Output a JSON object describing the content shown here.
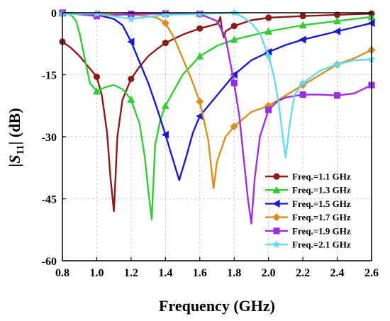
{
  "chart_data": {
    "type": "line",
    "title": "",
    "xlabel": "Frequency (GHz)",
    "ylabel_parts": {
      "left_bar": "|",
      "symbol": "S",
      "subscript": "11",
      "right_bar": "|",
      "unit": " (dB)"
    },
    "xlim": [
      0.8,
      2.6
    ],
    "ylim": [
      -60,
      0
    ],
    "x_ticks": [
      "0.8",
      "1.0",
      "1.2",
      "1.4",
      "1.6",
      "1.8",
      "2.0",
      "2.2",
      "2.4",
      "2.6"
    ],
    "x_tick_values": [
      0.8,
      1.0,
      1.2,
      1.4,
      1.6,
      1.8,
      2.0,
      2.2,
      2.4,
      2.6
    ],
    "y_ticks": [
      "0",
      "-15",
      "-30",
      "-45",
      "-60"
    ],
    "y_tick_values": [
      0,
      -15,
      -30,
      -45,
      -60
    ],
    "grid": true,
    "legend_position": "bottom-right",
    "series": [
      {
        "name": "Freq.=1.1 GHz",
        "color": "#8b1a1a",
        "marker": "circle",
        "x": [
          0.8,
          0.85,
          0.9,
          0.95,
          1.0,
          1.03,
          1.06,
          1.08,
          1.1,
          1.12,
          1.15,
          1.2,
          1.25,
          1.3,
          1.35,
          1.4,
          1.5,
          1.6,
          1.7,
          1.71,
          1.72,
          1.73,
          1.74,
          1.75,
          1.8,
          1.9,
          2.0,
          2.2,
          2.4,
          2.6
        ],
        "y": [
          -7,
          -8.5,
          -10.5,
          -13,
          -15.5,
          -20,
          -29,
          -40,
          -48,
          -30,
          -21,
          -16,
          -13,
          -10.5,
          -8.8,
          -7.3,
          -5.3,
          -3.8,
          -2.7,
          -2.2,
          -1,
          -4.5,
          -6,
          -4.5,
          -3.2,
          -1.8,
          -1.2,
          -0.8,
          -0.5,
          -0.2
        ],
        "marker_x": [
          0.8,
          1.0,
          1.2,
          1.4,
          1.6,
          1.8,
          2.0,
          2.2,
          2.4,
          2.6
        ],
        "marker_y": [
          -7,
          -15.5,
          -16,
          -7.3,
          -3.8,
          -3.2,
          -1.2,
          -0.8,
          -0.5,
          -0.2
        ]
      },
      {
        "name": "Freq.=1.3 GHz",
        "color": "#33cc33",
        "marker": "triangle",
        "x": [
          0.8,
          0.85,
          0.88,
          0.9,
          0.93,
          0.96,
          1.0,
          1.05,
          1.1,
          1.15,
          1.2,
          1.25,
          1.28,
          1.3,
          1.32,
          1.34,
          1.37,
          1.4,
          1.5,
          1.6,
          1.7,
          1.8,
          1.9,
          2.0,
          2.2,
          2.4,
          2.6
        ],
        "y": [
          0,
          -0.5,
          -2,
          -5,
          -11,
          -17,
          -19,
          -18,
          -17.5,
          -18.5,
          -21,
          -27,
          -35,
          -43,
          -50,
          -32,
          -26,
          -22.5,
          -15,
          -10.5,
          -8,
          -6.5,
          -5.5,
          -4.5,
          -3,
          -2,
          -1
        ],
        "marker_x": [
          0.8,
          1.0,
          1.2,
          1.4,
          1.6,
          1.8,
          2.0,
          2.2,
          2.4,
          2.6
        ],
        "marker_y": [
          0,
          -19,
          -21,
          -22.5,
          -10.5,
          -6.5,
          -4.5,
          -3,
          -2,
          -1
        ]
      },
      {
        "name": "Freq.=1.5 GHz",
        "color": "#1a1acc",
        "marker": "triangle-left",
        "x": [
          0.8,
          0.9,
          1.0,
          1.05,
          1.1,
          1.15,
          1.2,
          1.25,
          1.3,
          1.35,
          1.4,
          1.44,
          1.48,
          1.52,
          1.56,
          1.6,
          1.7,
          1.8,
          1.9,
          2.0,
          2.1,
          2.2,
          2.4,
          2.6
        ],
        "y": [
          0,
          -0.2,
          -0.5,
          -1,
          -1.5,
          -3,
          -7,
          -12,
          -17,
          -23,
          -29.5,
          -35,
          -40.5,
          -35,
          -29,
          -25,
          -20,
          -15,
          -11.5,
          -9.5,
          -7.8,
          -6.5,
          -4.5,
          -2.5
        ],
        "marker_x": [
          0.8,
          1.0,
          1.2,
          1.4,
          1.6,
          1.8,
          2.0,
          2.2,
          2.4,
          2.6
        ],
        "marker_y": [
          0,
          -0.5,
          -7,
          -29.5,
          -25,
          -15,
          -9.5,
          -6.5,
          -4.5,
          -2.5
        ]
      },
      {
        "name": "Freq.=1.7 GHz",
        "color": "#d49020",
        "marker": "diamond",
        "x": [
          0.8,
          1.0,
          1.2,
          1.3,
          1.35,
          1.4,
          1.45,
          1.5,
          1.55,
          1.6,
          1.65,
          1.68,
          1.7,
          1.75,
          1.8,
          1.9,
          2.0,
          2.1,
          2.2,
          2.3,
          2.4,
          2.5,
          2.6
        ],
        "y": [
          0,
          -0.2,
          -0.5,
          -0.8,
          -1.2,
          -2.5,
          -6,
          -11,
          -16,
          -21.5,
          -31,
          -42.5,
          -36,
          -30,
          -27.5,
          -24,
          -22.5,
          -20,
          -17.5,
          -15,
          -12.5,
          -11,
          -9
        ],
        "marker_x": [
          0.8,
          1.0,
          1.2,
          1.4,
          1.6,
          1.8,
          2.0,
          2.2,
          2.4,
          2.6
        ],
        "marker_y": [
          0,
          -0.2,
          -0.5,
          -2.5,
          -21.5,
          -27.5,
          -22.5,
          -17.5,
          -12.5,
          -9
        ]
      },
      {
        "name": "Freq.=1.9 GHz",
        "color": "#9b30e0",
        "marker": "square",
        "x": [
          0.8,
          1.0,
          1.2,
          1.4,
          1.6,
          1.7,
          1.75,
          1.8,
          1.83,
          1.86,
          1.88,
          1.9,
          1.92,
          1.95,
          2.0,
          2.05,
          2.1,
          2.2,
          2.3,
          2.4,
          2.5,
          2.6
        ],
        "y": [
          0,
          -0.8,
          -0.3,
          -0.2,
          -0.3,
          -2,
          -6,
          -17,
          -25,
          -37,
          -45,
          -51,
          -40,
          -30,
          -23.5,
          -21.5,
          -20.5,
          -19.8,
          -19.8,
          -20,
          -19.5,
          -17.5
        ],
        "marker_x": [
          0.8,
          1.0,
          1.2,
          1.4,
          1.6,
          1.8,
          2.0,
          2.2,
          2.4,
          2.6
        ],
        "marker_y": [
          0,
          -0.8,
          -0.3,
          -0.2,
          -0.3,
          -17,
          -23.5,
          -19.8,
          -20,
          -17.5
        ]
      },
      {
        "name": "Freq.=2.1 GHz",
        "color": "#66d9f2",
        "marker": "star",
        "x": [
          0.8,
          1.0,
          1.2,
          1.4,
          1.6,
          1.8,
          1.85,
          1.9,
          1.95,
          2.0,
          2.03,
          2.06,
          2.08,
          2.1,
          2.12,
          2.15,
          2.2,
          2.3,
          2.4,
          2.5,
          2.6
        ],
        "y": [
          -0.3,
          -0.2,
          -1.5,
          -0.5,
          -0.3,
          0,
          -1,
          -2.5,
          -5,
          -10.5,
          -15,
          -22,
          -29,
          -35,
          -28,
          -20,
          -17,
          -14,
          -12.5,
          -11.5,
          -11.3
        ],
        "marker_x": [
          0.8,
          1.0,
          1.2,
          1.4,
          1.6,
          1.8,
          2.0,
          2.2,
          2.4,
          2.6
        ],
        "marker_y": [
          -0.3,
          -0.2,
          -1.5,
          -0.5,
          -0.3,
          0,
          -10.5,
          -17,
          -12.5,
          -11.3
        ]
      }
    ]
  }
}
